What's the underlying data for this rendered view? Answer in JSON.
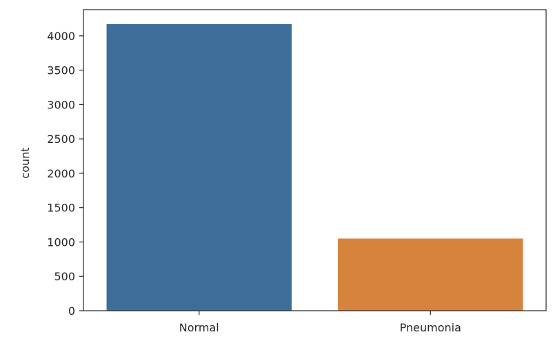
{
  "chart_data": {
    "type": "bar",
    "categories": [
      "Normal",
      "Pneumonia"
    ],
    "values": [
      4170,
      1050
    ],
    "colors": [
      "#3d6e99",
      "#d6833e"
    ],
    "xlabel": "",
    "ylabel": "count",
    "ylim": [
      0,
      4380
    ],
    "yticks": [
      0,
      500,
      1000,
      1500,
      2000,
      2500,
      3000,
      3500,
      4000
    ],
    "grid": false
  }
}
